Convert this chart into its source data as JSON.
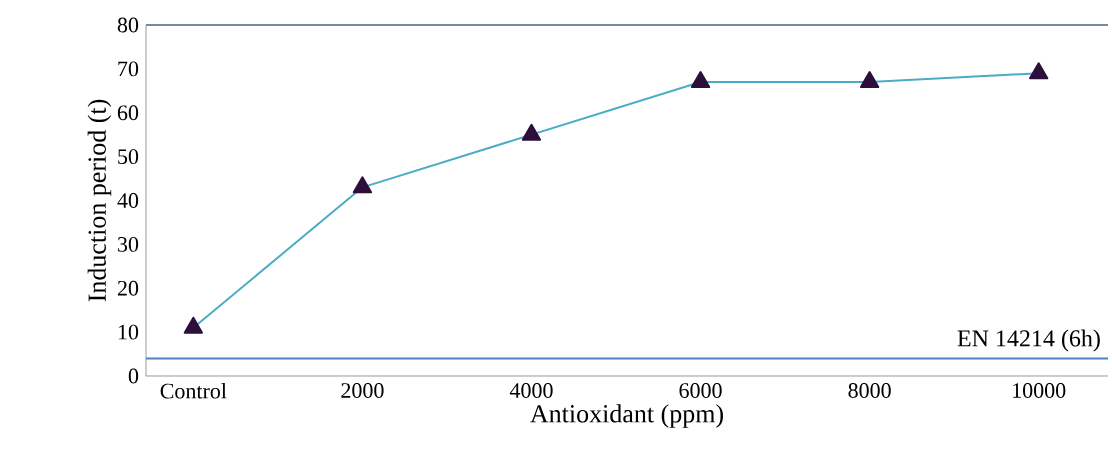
{
  "chart_data": {
    "type": "line",
    "xlabel": "Antioxidant (ppm)",
    "ylabel": "Induction period (t)",
    "categories": [
      "Control",
      "2000",
      "4000",
      "6000",
      "8000",
      "10000"
    ],
    "series": [
      {
        "color": "#4bacc6",
        "values": [
          11,
          43,
          55,
          67,
          67,
          69
        ]
      }
    ],
    "marker": "triangle",
    "line_style": "solid",
    "ylim": [
      0,
      80
    ],
    "yticks": [
      0,
      10,
      20,
      30,
      40,
      50,
      60,
      70,
      80
    ],
    "ref_lines": [
      {
        "axis": "y",
        "value": 4,
        "label": "EN 14214 (6h)",
        "color": "#4f81bd"
      }
    ]
  }
}
